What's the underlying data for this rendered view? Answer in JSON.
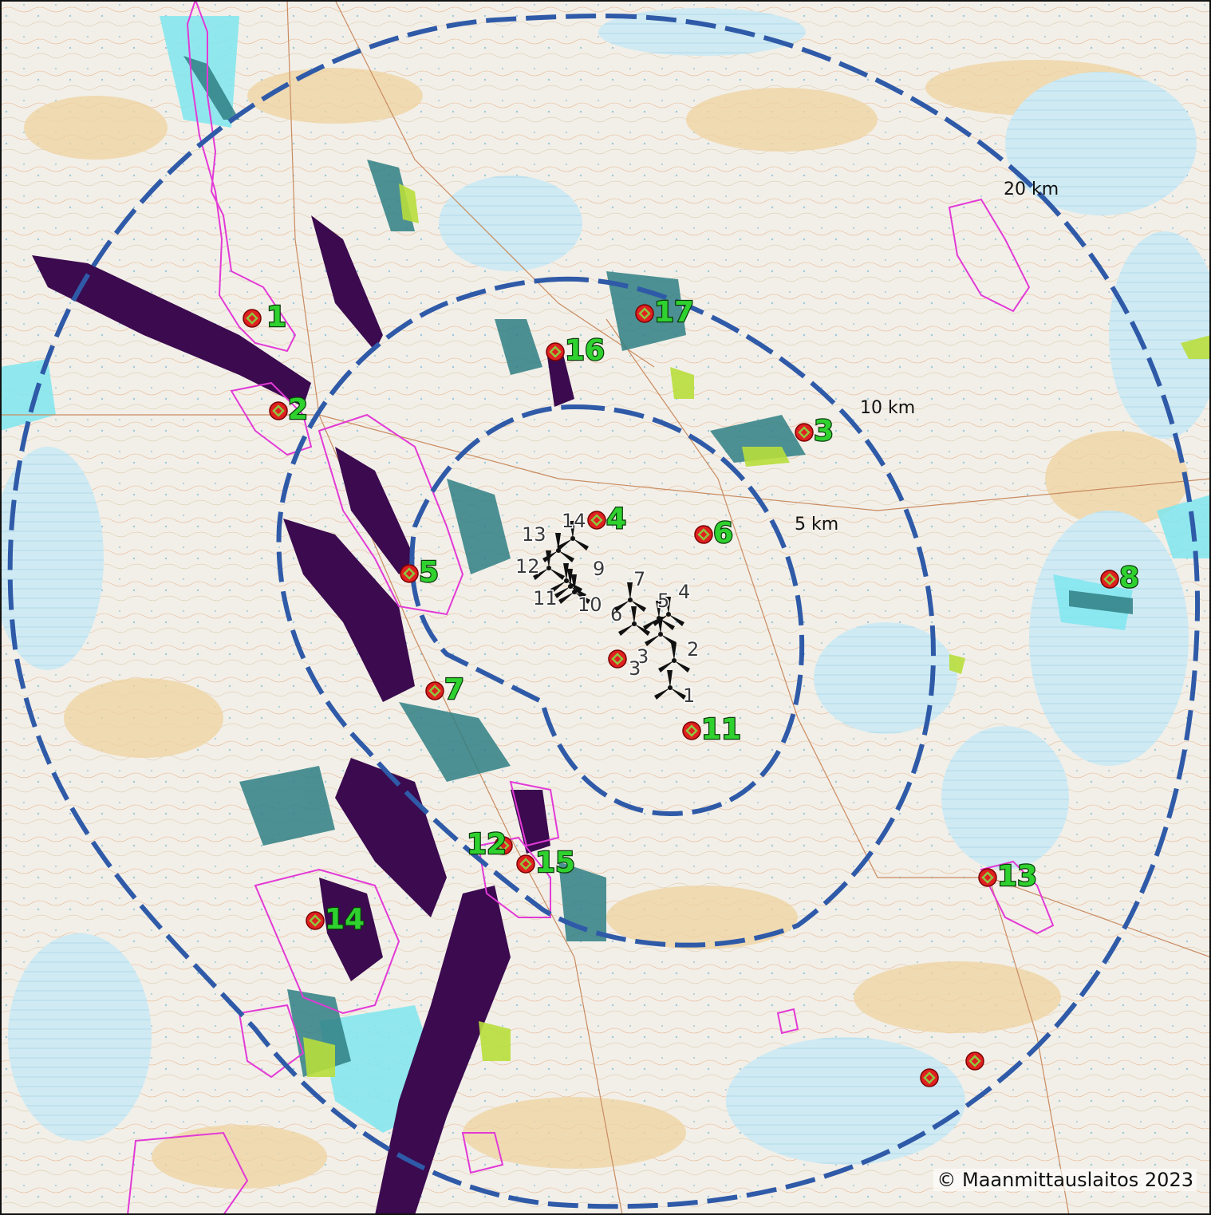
{
  "map": {
    "copyright": "© Maanmittauslaitos 2023",
    "colors": {
      "land": "#f3efe6",
      "forest_patch": "#efd9a8",
      "water": "#bfe6f0",
      "water_bright": "#7fe6ee",
      "visibility_dark": "#3b0a4f",
      "visibility_mid": "#2f7f84",
      "visibility_light": "#b8de3c",
      "range_ring": "#2f5aa8",
      "protected_area": "#e23ad6",
      "viewpoint_fill": "#e02020",
      "viewpoint_inner": "#8ec63f",
      "turbine": "#111111"
    },
    "range_rings": [
      {
        "label": "5 km"
      },
      {
        "label": "10 km"
      },
      {
        "label": "20 km"
      }
    ],
    "viewpoints": [
      {
        "label": "1"
      },
      {
        "label": "2"
      },
      {
        "label": "3"
      },
      {
        "label": "4"
      },
      {
        "label": "5"
      },
      {
        "label": "6"
      },
      {
        "label": "7"
      },
      {
        "label": "8"
      },
      {
        "label": "11"
      },
      {
        "label": "12"
      },
      {
        "label": "13"
      },
      {
        "label": "14"
      },
      {
        "label": "15"
      },
      {
        "label": "16"
      },
      {
        "label": "17"
      },
      {
        "label": "3"
      },
      {
        "label": ""
      },
      {
        "label": ""
      }
    ],
    "turbines": [
      {
        "label": "1"
      },
      {
        "label": "2"
      },
      {
        "label": "3"
      },
      {
        "label": "4"
      },
      {
        "label": "5"
      },
      {
        "label": "6"
      },
      {
        "label": "7"
      },
      {
        "label": "9"
      },
      {
        "label": "10"
      },
      {
        "label": "11"
      },
      {
        "label": "12"
      },
      {
        "label": "13"
      },
      {
        "label": "14"
      }
    ],
    "legend_icons": {
      "viewpoint": "viewpoint-marker-icon",
      "turbine": "wind-turbine-icon"
    }
  }
}
